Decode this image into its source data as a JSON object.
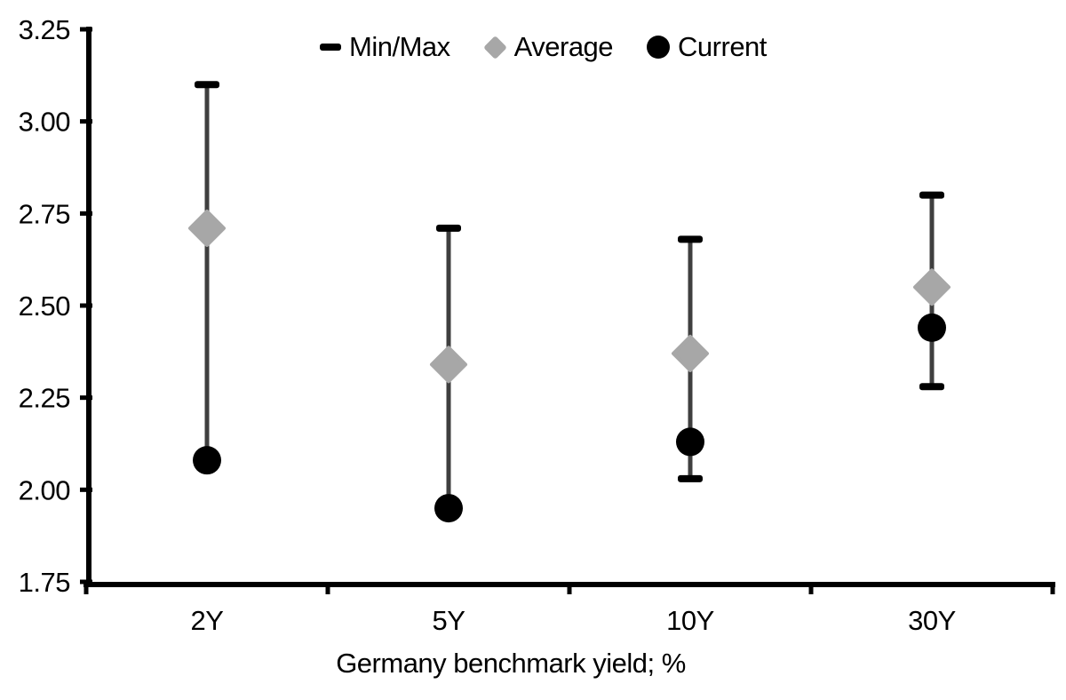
{
  "chart_data": {
    "type": "scatter",
    "chart_kind": "min-max-range-with-average-and-current",
    "title": "",
    "xlabel": "Germany benchmark yield; %",
    "ylabel": "",
    "categories": [
      "2Y",
      "5Y",
      "10Y",
      "30Y"
    ],
    "ylim": [
      1.75,
      3.25
    ],
    "ytick_step": 0.25,
    "ytick_labels": [
      "1.75",
      "2.00",
      "2.25",
      "2.50",
      "2.75",
      "3.00",
      "3.25"
    ],
    "grid": false,
    "legend_position": "top-center",
    "legend": [
      {
        "label": "Min/Max",
        "marker": "dash"
      },
      {
        "label": "Average",
        "marker": "diamond"
      },
      {
        "label": "Current",
        "marker": "circle"
      }
    ],
    "series": [
      {
        "name": "Min/Max",
        "type": "range",
        "min": [
          2.08,
          1.95,
          2.03,
          2.28
        ],
        "max": [
          3.1,
          2.71,
          2.68,
          2.8
        ]
      },
      {
        "name": "Average",
        "type": "point",
        "marker": "diamond",
        "values": [
          2.71,
          2.34,
          2.37,
          2.55
        ]
      },
      {
        "name": "Current",
        "type": "point",
        "marker": "circle",
        "values": [
          2.08,
          1.95,
          2.13,
          2.44
        ]
      }
    ],
    "colors": {
      "range_line": "#3f3f3f",
      "cap": "#000000",
      "average": "#a7a7a7",
      "current": "#000000",
      "axis": "#000000",
      "text": "#000000",
      "background": "#ffffff"
    }
  }
}
